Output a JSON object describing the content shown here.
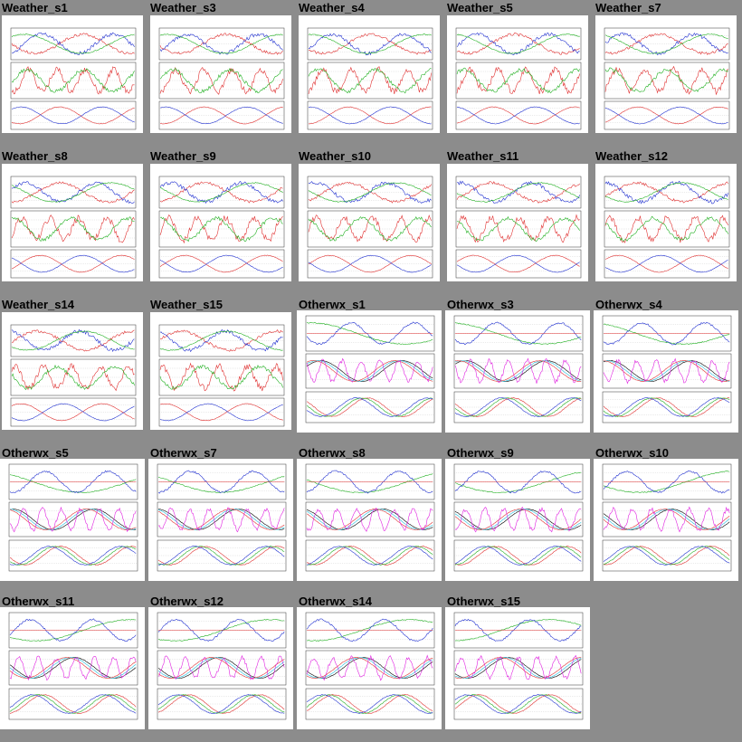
{
  "colors": {
    "background": "#8c8c8c",
    "tile_background": "#ffffff",
    "red": "#e03030",
    "green": "#20b020",
    "blue": "#2030d0",
    "cyan": "#20c0e0",
    "magenta": "#e020e0",
    "black": "#000000"
  },
  "tiles": [
    {
      "title": "Weather_s1",
      "kind": "weather"
    },
    {
      "title": "Weather_s3",
      "kind": "weather"
    },
    {
      "title": "Weather_s4",
      "kind": "weather"
    },
    {
      "title": "Weather_s5",
      "kind": "weather"
    },
    {
      "title": "Weather_s7",
      "kind": "weather"
    },
    {
      "title": "Weather_s8",
      "kind": "weather"
    },
    {
      "title": "Weather_s9",
      "kind": "weather"
    },
    {
      "title": "Weather_s10",
      "kind": "weather"
    },
    {
      "title": "Weather_s11",
      "kind": "weather"
    },
    {
      "title": "Weather_s12",
      "kind": "weather"
    },
    {
      "title": "Weather_s14",
      "kind": "weather"
    },
    {
      "title": "Weather_s15",
      "kind": "weather"
    },
    {
      "title": "Otherwx_s1",
      "kind": "otherwx"
    },
    {
      "title": "Otherwx_s3",
      "kind": "otherwx"
    },
    {
      "title": "Otherwx_s4",
      "kind": "otherwx"
    },
    {
      "title": "Otherwx_s5",
      "kind": "otherwx"
    },
    {
      "title": "Otherwx_s7",
      "kind": "otherwx"
    },
    {
      "title": "Otherwx_s8",
      "kind": "otherwx"
    },
    {
      "title": "Otherwx_s9",
      "kind": "otherwx"
    },
    {
      "title": "Otherwx_s10",
      "kind": "otherwx"
    },
    {
      "title": "Otherwx_s11",
      "kind": "otherwx"
    },
    {
      "title": "Otherwx_s12",
      "kind": "otherwx"
    },
    {
      "title": "Otherwx_s14",
      "kind": "otherwx"
    },
    {
      "title": "Otherwx_s15",
      "kind": "otherwx"
    }
  ]
}
